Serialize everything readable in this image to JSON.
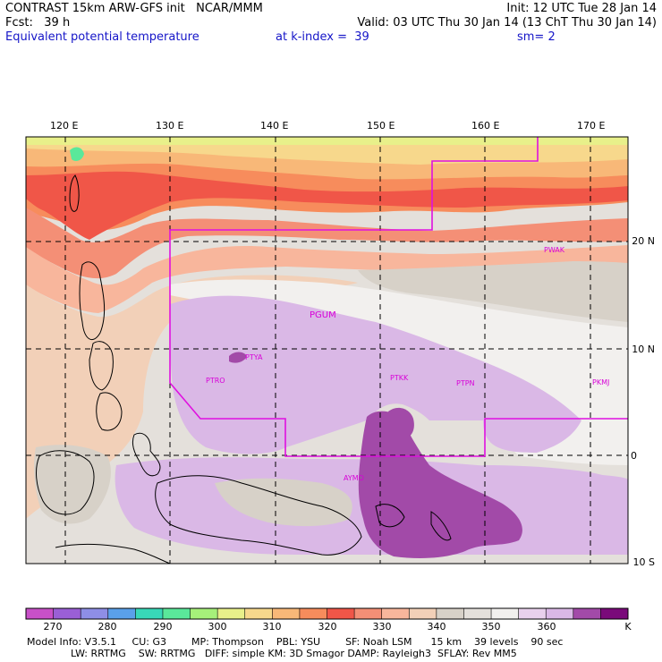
{
  "header": {
    "line1_left": "CONTRAST 15km ARW-GFS init   NCAR/MMM",
    "line1_right": "Init: 12 UTC Tue 28 Jan 14",
    "line2_left": "Fcst:   39 h",
    "line2_right": "Valid: 03 UTC Thu 30 Jan 14 (13 ChT Thu 30 Jan 14)",
    "line3_left": "Equivalent potential temperature",
    "line3_mid": "at k-index =  39",
    "line3_right": "sm= 2"
  },
  "map": {
    "lon_labels": [
      "120 E",
      "130 E",
      "140 E",
      "150 E",
      "160 E",
      "170 E"
    ],
    "lat_labels": [
      "20 N",
      "10 N",
      "0",
      "10 S"
    ],
    "stations": [
      "PWAK",
      "PGUM",
      "PTYA",
      "PTRO",
      "PTKK",
      "PTPN",
      "PKMJ",
      "AYMO"
    ],
    "boundary_color": "#e010e0"
  },
  "colorbar": {
    "labels": [
      "270",
      "280",
      "290",
      "300",
      "310",
      "320",
      "330",
      "340",
      "350",
      "360",
      "K"
    ],
    "colors": [
      "#c850c8",
      "#9a5fd6",
      "#8e8ee6",
      "#5aa0ea",
      "#38d8b8",
      "#5ae89a",
      "#a6f07a",
      "#e8f08a",
      "#f7d88c",
      "#f8b878",
      "#f78c5c",
      "#f05648",
      "#f48f76",
      "#f8b69c",
      "#f2d0b8",
      "#d7d1c8",
      "#e4e0db",
      "#f2f0ee",
      "#e8d0ec",
      "#dab8e6",
      "#a24aa8",
      "#7a0a7a"
    ]
  },
  "footer": {
    "line1": "Model Info: V3.5.1     CU: G3        MP: Thompson    PBL: YSU        SF: Noah LSM      15 km    39 levels    90 sec",
    "line2": "              LW: RRTMG    SW: RRTMG   DIFF: simple KM: 3D Smagor DAMP: Rayleigh3  SFLAY: Rev MM5"
  }
}
